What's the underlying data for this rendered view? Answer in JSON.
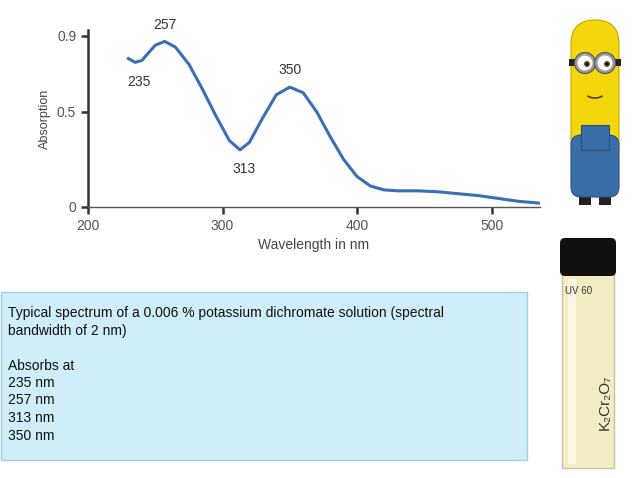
{
  "chart_data": {
    "type": "line",
    "x_label": "Wavelength in nm",
    "y_label": "Absorption",
    "x": [
      230,
      235,
      240,
      245,
      250,
      257,
      265,
      275,
      285,
      295,
      305,
      313,
      320,
      330,
      340,
      350,
      360,
      370,
      380,
      390,
      400,
      410,
      420,
      430,
      445,
      460,
      475,
      490,
      505,
      520,
      536
    ],
    "values": [
      0.78,
      0.76,
      0.77,
      0.81,
      0.85,
      0.87,
      0.84,
      0.75,
      0.62,
      0.48,
      0.35,
      0.3,
      0.34,
      0.47,
      0.59,
      0.63,
      0.6,
      0.5,
      0.37,
      0.25,
      0.16,
      0.11,
      0.09,
      0.085,
      0.085,
      0.08,
      0.07,
      0.06,
      0.045,
      0.03,
      0.02
    ],
    "color": "#3a6eb5",
    "xlim": [
      200,
      536
    ],
    "xticks": [
      200,
      300,
      400,
      500
    ],
    "ylim": [
      0,
      0.93
    ],
    "yticks": [
      0,
      0.5,
      0.9
    ],
    "annotations": [
      {
        "text": "235",
        "x": 235,
        "y": 0.76
      },
      {
        "text": "257",
        "x": 257,
        "y": 0.87
      },
      {
        "text": "313",
        "x": 313,
        "y": 0.3
      },
      {
        "text": "350",
        "x": 350,
        "y": 0.63
      }
    ]
  },
  "caption": {
    "lines": [
      "Typical spectrum of a 0.006 % potassium dichromate solution (spectral",
      "bandwidth of 2 nm)"
    ],
    "heading": "Absorbs at",
    "items": [
      "235 nm",
      "257 nm",
      "313 nm",
      "350 nm"
    ]
  },
  "cuvette": {
    "label": "UV 60",
    "formula": "K₂Cr₂O₇"
  }
}
